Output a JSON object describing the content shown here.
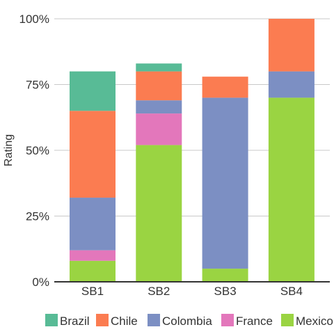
{
  "chart_data": {
    "type": "bar",
    "stacked": true,
    "title": "",
    "xlabel": "",
    "ylabel": "Rating",
    "categories": [
      "SB1",
      "SB2",
      "SB3",
      "SB4"
    ],
    "ylim": [
      0,
      100
    ],
    "yticks": [
      "0%",
      "25%",
      "50%",
      "75%",
      "100%"
    ],
    "grid": true,
    "legend_position": "bottom",
    "series": [
      {
        "name": "Mexico",
        "color": "#9ad442",
        "values": [
          8,
          52,
          5,
          70
        ]
      },
      {
        "name": "France",
        "color": "#e377bb",
        "values": [
          4,
          12,
          0,
          0
        ]
      },
      {
        "name": "Colombia",
        "color": "#7c8fc3",
        "values": [
          20,
          5,
          65,
          10
        ]
      },
      {
        "name": "Chile",
        "color": "#fb7c51",
        "values": [
          33,
          11,
          8,
          20
        ]
      },
      {
        "name": "Brazil",
        "color": "#58bb96",
        "values": [
          15,
          3,
          0,
          0
        ]
      }
    ],
    "legend_order": [
      "Brazil",
      "Chile",
      "Colombia",
      "France",
      "Mexico"
    ]
  }
}
